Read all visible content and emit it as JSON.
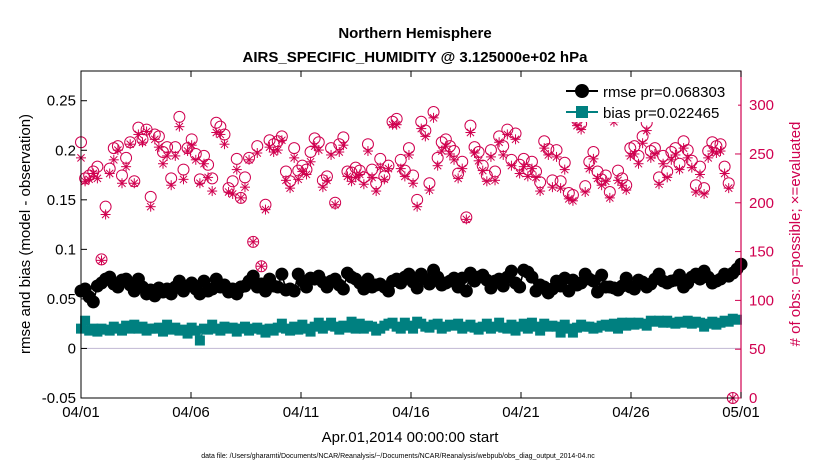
{
  "chart_data": {
    "type": "line",
    "title": "Northern Hemisphere",
    "subtitle": "AIRS_SPECIFIC_HUMIDITY @ 3.125000e+02 hPa",
    "xlabel": "Apr.01,2014 00:00:00 start",
    "ylabel": "rmse and bias (model - observation)",
    "ylabel_right": "# of obs: o=possible; ×=evaluated",
    "ylim": [
      -0.05,
      0.28
    ],
    "ylim_right": [
      0,
      335
    ],
    "xlim": [
      0,
      30
    ],
    "x_ticks": [
      0,
      5,
      10,
      15,
      20,
      25,
      30
    ],
    "x_tick_labels": [
      "04/01",
      "04/06",
      "04/11",
      "04/16",
      "04/21",
      "04/26",
      "05/01"
    ],
    "y_ticks": [
      -0.05,
      0,
      0.05,
      0.1,
      0.15,
      0.2,
      0.25
    ],
    "y_tick_labels": [
      "-0.05",
      "0",
      "0.05",
      "0.1",
      "0.15",
      "0.2",
      "0.25"
    ],
    "y_right_ticks": [
      0,
      50,
      100,
      150,
      200,
      250,
      300
    ],
    "y_right_tick_labels": [
      "0",
      "50",
      "100",
      "150",
      "200",
      "250",
      "300"
    ],
    "legend_position": "top-right",
    "series": [
      {
        "name": "rmse pr=0.068303",
        "color": "#000000",
        "marker": "filled-circle",
        "axis": "left",
        "values": [
          0.058,
          0.06,
          0.052,
          0.047,
          0.063,
          0.066,
          0.07,
          0.072,
          0.065,
          0.062,
          0.069,
          0.07,
          0.064,
          0.058,
          0.07,
          0.062,
          0.055,
          0.059,
          0.053,
          0.061,
          0.057,
          0.06,
          0.055,
          0.062,
          0.068,
          0.058,
          0.063,
          0.066,
          0.06,
          0.055,
          0.068,
          0.058,
          0.06,
          0.07,
          0.062,
          0.064,
          0.057,
          0.06,
          0.055,
          0.062,
          0.063,
          0.068,
          0.073,
          0.062,
          0.065,
          0.058,
          0.07,
          0.063,
          0.062,
          0.075,
          0.059,
          0.06,
          0.058,
          0.075,
          0.068,
          0.062,
          0.071,
          0.07,
          0.073,
          0.067,
          0.062,
          0.068,
          0.07,
          0.064,
          0.06,
          0.076,
          0.072,
          0.07,
          0.066,
          0.06,
          0.07,
          0.062,
          0.064,
          0.065,
          0.062,
          0.058,
          0.068,
          0.07,
          0.066,
          0.072,
          0.075,
          0.067,
          0.061,
          0.075,
          0.07,
          0.065,
          0.079,
          0.072,
          0.064,
          0.066,
          0.068,
          0.071,
          0.062,
          0.071,
          0.058,
          0.076,
          0.068,
          0.072,
          0.074,
          0.069,
          0.061,
          0.068,
          0.07,
          0.063,
          0.072,
          0.078,
          0.066,
          0.062,
          0.079,
          0.077,
          0.072,
          0.058,
          0.064,
          0.062,
          0.056,
          0.06,
          0.068,
          0.063,
          0.071,
          0.058,
          0.069,
          0.064,
          0.066,
          0.075,
          0.07,
          0.068,
          0.057,
          0.074,
          0.062,
          0.062,
          0.061,
          0.059,
          0.063,
          0.071,
          0.062,
          0.06,
          0.069,
          0.067,
          0.062,
          0.065,
          0.07,
          0.075,
          0.068,
          0.066,
          0.068,
          0.069,
          0.074,
          0.062,
          0.066,
          0.072,
          0.075,
          0.07,
          0.078,
          0.072,
          0.066,
          0.068,
          0.07,
          0.075,
          0.073,
          0.076,
          0.08,
          0.085
        ]
      },
      {
        "name": "bias pr=0.022465",
        "color": "#008080",
        "marker": "filled-square",
        "axis": "left",
        "values": [
          0.02,
          0.028,
          0.018,
          0.02,
          0.017,
          0.02,
          0.019,
          0.018,
          0.022,
          0.02,
          0.018,
          0.023,
          0.02,
          0.024,
          0.02,
          0.022,
          0.018,
          0.02,
          0.02,
          0.021,
          0.017,
          0.024,
          0.019,
          0.021,
          0.018,
          0.019,
          0.015,
          0.021,
          0.018,
          0.008,
          0.02,
          0.019,
          0.024,
          0.02,
          0.018,
          0.022,
          0.02,
          0.021,
          0.017,
          0.02,
          0.022,
          0.018,
          0.02,
          0.021,
          0.019,
          0.016,
          0.02,
          0.018,
          0.021,
          0.025,
          0.02,
          0.018,
          0.022,
          0.019,
          0.024,
          0.02,
          0.017,
          0.022,
          0.026,
          0.02,
          0.023,
          0.026,
          0.022,
          0.019,
          0.023,
          0.021,
          0.027,
          0.02,
          0.025,
          0.02,
          0.023,
          0.022,
          0.018,
          0.02,
          0.023,
          0.025,
          0.026,
          0.022,
          0.02,
          0.026,
          0.023,
          0.02,
          0.027,
          0.025,
          0.022,
          0.021,
          0.024,
          0.025,
          0.02,
          0.022,
          0.024,
          0.023,
          0.025,
          0.02,
          0.022,
          0.024,
          0.021,
          0.019,
          0.022,
          0.025,
          0.02,
          0.022,
          0.026,
          0.021,
          0.02,
          0.024,
          0.018,
          0.022,
          0.025,
          0.02,
          0.026,
          0.022,
          0.018,
          0.025,
          0.022,
          0.023,
          0.022,
          0.016,
          0.024,
          0.02,
          0.016,
          0.021,
          0.024,
          0.022,
          0.022,
          0.02,
          0.021,
          0.023,
          0.024,
          0.022,
          0.025,
          0.02,
          0.026,
          0.023,
          0.026,
          0.024,
          0.026,
          0.025,
          0.023,
          0.028,
          0.027,
          0.028,
          0.026,
          0.028,
          0.026,
          0.025,
          0.027,
          0.026,
          0.028,
          0.025,
          0.027,
          0.026,
          0.022,
          0.025,
          0.027,
          0.024,
          0.026,
          0.028,
          0.027,
          0.03,
          0.029
        ]
      },
      {
        "name": "# of obs possible",
        "color": "#d0004f",
        "marker": "open-circle",
        "axis": "right",
        "values": [
          262,
          225,
          228,
          232,
          237,
          142,
          196,
          235,
          256,
          258,
          228,
          246,
          262,
          222,
          277,
          265,
          275,
          206,
          270,
          268,
          252,
          257,
          225,
          257,
          288,
          234,
          256,
          265,
          250,
          224,
          248,
          239,
          225,
          282,
          278,
          270,
          215,
          222,
          245,
          205,
          226,
          246,
          160,
          258,
          135,
          198,
          264,
          260,
          263,
          268,
          232,
          222,
          256,
          233,
          238,
          234,
          252,
          266,
          262,
          223,
          227,
          256,
          200,
          260,
          267,
          232,
          231,
          236,
          233,
          226,
          260,
          234,
          220,
          245,
          227,
          238,
          283,
          286,
          244,
          233,
          256,
          228,
          203,
          283,
          274,
          220,
          293,
          246,
          262,
          265,
          258,
          253,
          230,
          242,
          185,
          279,
          257,
          252,
          238,
          228,
          254,
          232,
          268,
          258,
          275,
          244,
          271,
          239,
          245,
          234,
          242,
          232,
          221,
          263,
          255,
          223,
          254,
          222,
          241,
          210,
          208,
          285,
          281,
          217,
          242,
          252,
          232,
          224,
          228,
          211,
          290,
          233,
          225,
          218,
          256,
          258,
          248,
          268,
          282,
          253,
          256,
          226,
          248,
          232,
          252,
          256,
          240,
          263,
          254,
          243,
          218,
          237,
          215,
          253,
          262,
          258,
          260,
          237,
          220,
          0
        ]
      },
      {
        "name": "# of obs evaluated",
        "color": "#d0004f",
        "marker": "cross",
        "axis": "right",
        "values": [
          246,
          222,
          224,
          230,
          225,
          141,
          188,
          230,
          244,
          254,
          220,
          237,
          260,
          220,
          270,
          262,
          273,
          196,
          265,
          257,
          240,
          248,
          218,
          248,
          278,
          224,
          253,
          259,
          244,
          220,
          240,
          226,
          212,
          272,
          270,
          260,
          211,
          209,
          234,
          205,
          216,
          244,
          160,
          251,
          135,
          193,
          257,
          252,
          254,
          264,
          223,
          215,
          246,
          224,
          232,
          229,
          242,
          258,
          254,
          216,
          223,
          249,
          198,
          252,
          259,
          227,
          222,
          226,
          229,
          219,
          253,
          226,
          212,
          236,
          224,
          235,
          280,
          280,
          235,
          227,
          249,
          220,
          196,
          276,
          268,
          213,
          287,
          238,
          253,
          258,
          250,
          244,
          225,
          235,
          183,
          272,
          251,
          243,
          233,
          222,
          247,
          223,
          262,
          249,
          270,
          238,
          265,
          230,
          237,
          227,
          235,
          226,
          212,
          256,
          249,
          216,
          247,
          215,
          234,
          204,
          202,
          279,
          275,
          211,
          235,
          245,
          225,
          218,
          222,
          205,
          283,
          223,
          218,
          213,
          248,
          250,
          240,
          261,
          274,
          246,
          250,
          219,
          240,
          226,
          244,
          249,
          234,
          256,
          246,
          236,
          211,
          229,
          209,
          246,
          253,
          251,
          253,
          230,
          215,
          0
        ]
      }
    ]
  },
  "footnote": "data file: /Users/gharamti/Documents/NCAR/Reanalysis/~/Documents/NCAR/Reanalysis/webpub/obs_diag_output_2014-04.nc"
}
